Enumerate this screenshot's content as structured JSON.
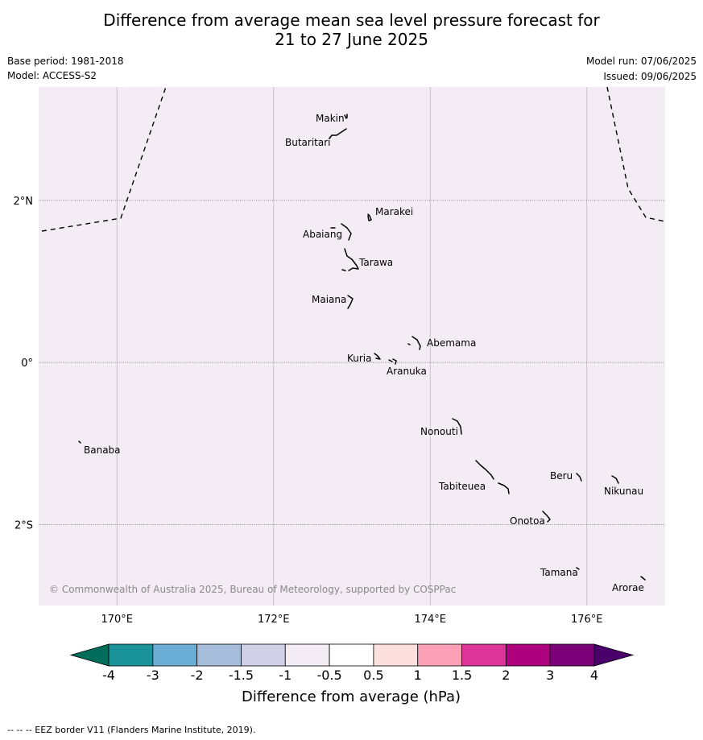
{
  "title": {
    "line1": "Difference from average mean sea level pressure forecast for",
    "line2": "21 to 27 June 2025"
  },
  "meta": {
    "base_period": "Base period: 1981-2018",
    "model": "Model: ACCESS-S2",
    "model_run": "Model run: 07/06/2025",
    "issued": "Issued: 09/06/2025"
  },
  "map": {
    "background_color": "#f4ecf4",
    "lon_range": [
      169,
      177
    ],
    "lat_range": [
      -3,
      3.4
    ],
    "lon_ticks": [
      {
        "value": 170,
        "label": "170°E"
      },
      {
        "value": 172,
        "label": "172°E"
      },
      {
        "value": 174,
        "label": "174°E"
      },
      {
        "value": 176,
        "label": "176°E"
      }
    ],
    "lat_ticks": [
      {
        "value": 2,
        "label": "2°N"
      },
      {
        "value": 0,
        "label": "0°"
      },
      {
        "value": -2,
        "label": "2°S"
      }
    ],
    "islands": [
      {
        "name": "Makin",
        "lon": 172.95,
        "lat": 3.27
      },
      {
        "name": "Butaritari",
        "lon": 172.85,
        "lat": 3.05
      },
      {
        "name": "Marakei",
        "lon": 173.3,
        "lat": 2.0
      },
      {
        "name": "Abaiang",
        "lon": 172.95,
        "lat": 1.85
      },
      {
        "name": "Tarawa",
        "lon": 173.05,
        "lat": 1.4
      },
      {
        "name": "Maiana",
        "lon": 173.0,
        "lat": 0.95
      },
      {
        "name": "Abemama",
        "lon": 173.85,
        "lat": 0.4
      },
      {
        "name": "Kuria",
        "lon": 173.4,
        "lat": 0.23
      },
      {
        "name": "Aranuka",
        "lon": 173.6,
        "lat": 0.17
      },
      {
        "name": "Banaba",
        "lon": 169.55,
        "lat": -0.86
      },
      {
        "name": "Nonouti",
        "lon": 174.4,
        "lat": -0.7
      },
      {
        "name": "Tabiteuea",
        "lon": 174.9,
        "lat": -1.4
      },
      {
        "name": "Beru",
        "lon": 176.0,
        "lat": -1.33
      },
      {
        "name": "Nikunau",
        "lon": 176.45,
        "lat": -1.37
      },
      {
        "name": "Onotoa",
        "lon": 175.55,
        "lat": -1.85
      },
      {
        "name": "Tamana",
        "lon": 175.98,
        "lat": -2.5
      },
      {
        "name": "Arorae",
        "lon": 176.8,
        "lat": -2.65
      }
    ],
    "copyright": "© Commonwealth of Australia 2025, Bureau of Meteorology, supported by COSPPac"
  },
  "colorbar": {
    "bins": [
      {
        "color": "#1a9399"
      },
      {
        "color": "#6aaed6"
      },
      {
        "color": "#a6bddb"
      },
      {
        "color": "#d0d1e6"
      },
      {
        "color": "#f4ecf4"
      },
      {
        "color": "#ffffff"
      },
      {
        "color": "#fde0dd"
      },
      {
        "color": "#fa9fb5"
      },
      {
        "color": "#dd3497"
      },
      {
        "color": "#ae017e"
      },
      {
        "color": "#7a0177"
      }
    ],
    "under_color": "#006d5b",
    "over_color": "#49006a",
    "tick_labels": [
      "-4",
      "-3",
      "-2",
      "-1.5",
      "-1",
      "-0.5",
      "0.5",
      "1",
      "1.5",
      "2",
      "3",
      "4"
    ],
    "label": "Difference from average (hPa)"
  },
  "footnote": "--  --  -- EEZ border V11 (Flanders Marine Institute, 2019)."
}
